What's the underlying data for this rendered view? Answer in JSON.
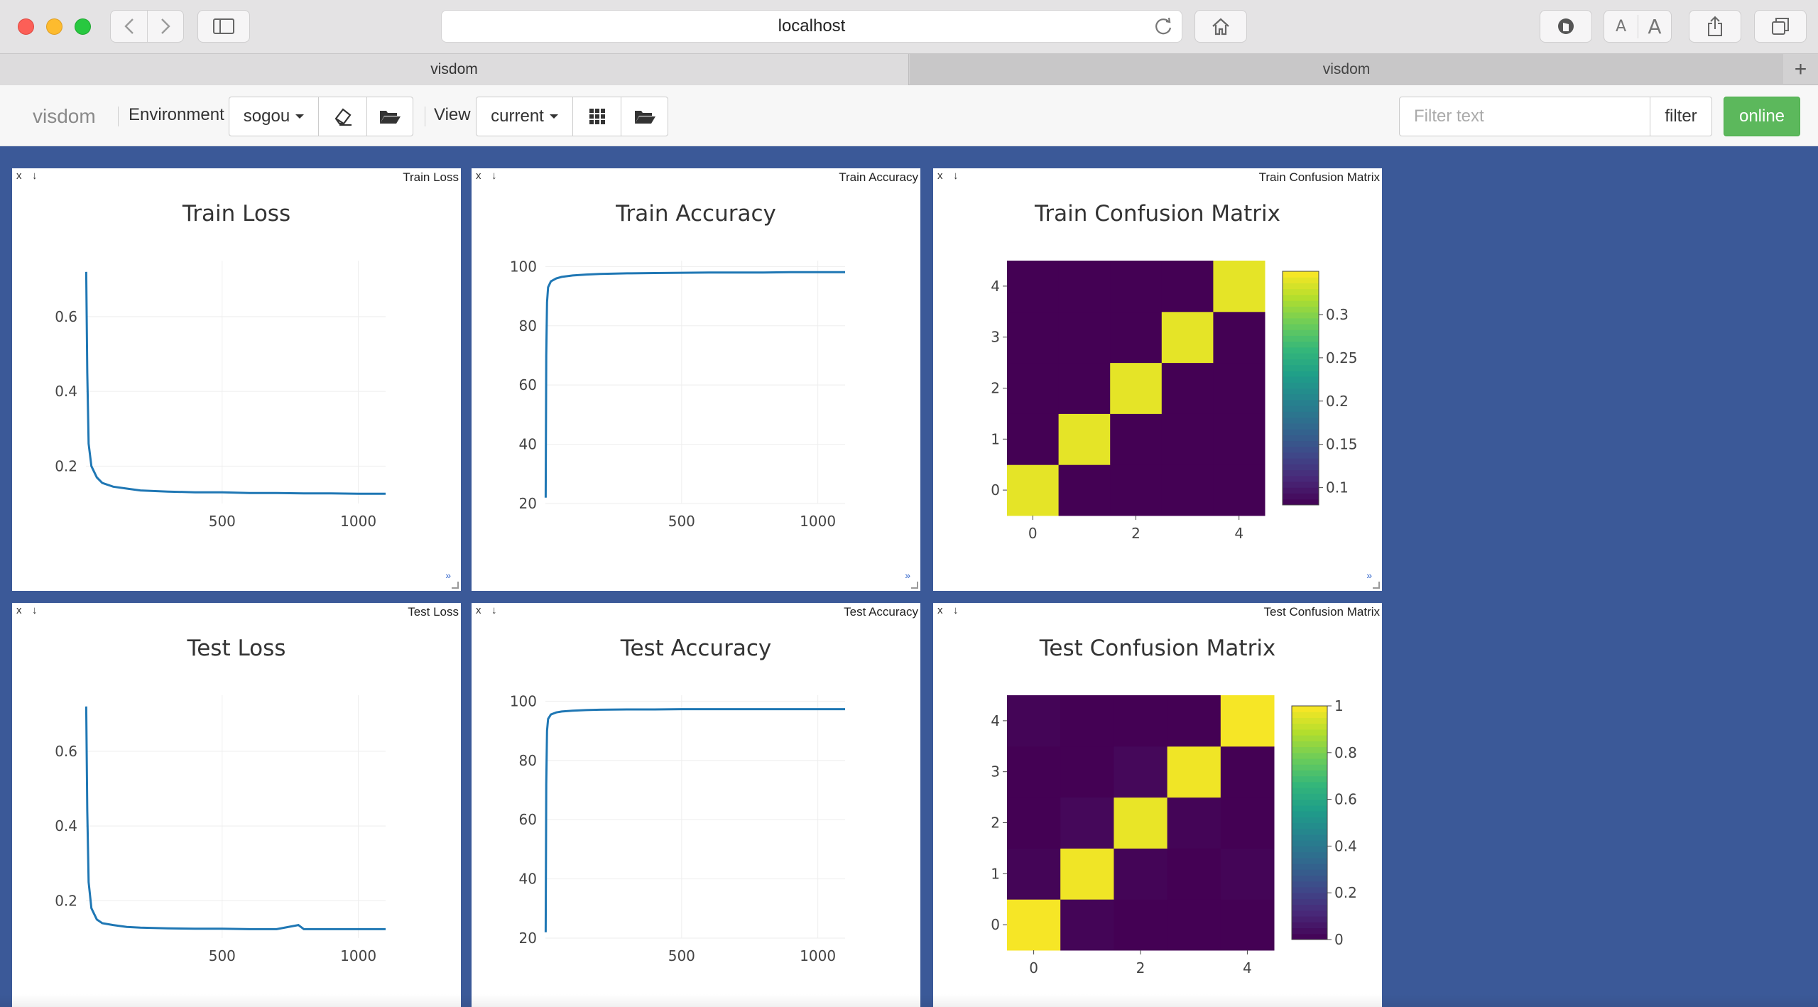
{
  "browser": {
    "url": "localhost",
    "tabs": [
      {
        "label": "visdom"
      },
      {
        "label": "visdom"
      }
    ],
    "new_tab": "+"
  },
  "toolbar": {
    "brand": "visdom",
    "env_label": "Environment",
    "env_value": "sogou",
    "view_label": "View",
    "view_value": "current",
    "filter_placeholder": "Filter text",
    "filter_button": "filter",
    "online_button": "online"
  },
  "panes": [
    {
      "window_title": "Train Loss",
      "plot_title": "Train Loss"
    },
    {
      "window_title": "Train Accuracy",
      "plot_title": "Train Accuracy"
    },
    {
      "window_title": "Train Confusion Matrix",
      "plot_title": "Train Confusion Matrix"
    },
    {
      "window_title": "Test Loss",
      "plot_title": "Test Loss"
    },
    {
      "window_title": "Test Accuracy",
      "plot_title": "Test Accuracy"
    },
    {
      "window_title": "Test Confusion Matrix",
      "plot_title": "Test Confusion Matrix"
    }
  ],
  "pane_controls": {
    "close": "x",
    "download": "↓",
    "expand": "»"
  },
  "colors": {
    "page_bg": "#3b5998",
    "line": "#1f77b4",
    "online": "#5cb85c",
    "viridis_low": "#440154",
    "viridis_high": "#fde725"
  },
  "chart_data": [
    {
      "type": "line",
      "title": "Train Loss",
      "x_ticks": [
        500,
        1000
      ],
      "y_ticks": [
        0.2,
        0.4,
        0.6
      ],
      "xlim": [
        0,
        1100
      ],
      "ylim": [
        0.1,
        0.75
      ],
      "grid": true,
      "series": [
        {
          "x": [
            1,
            5,
            10,
            20,
            40,
            60,
            100,
            150,
            200,
            300,
            400,
            500,
            600,
            700,
            800,
            900,
            1000,
            1100
          ],
          "y": [
            0.72,
            0.45,
            0.26,
            0.2,
            0.17,
            0.155,
            0.145,
            0.14,
            0.135,
            0.132,
            0.13,
            0.13,
            0.128,
            0.128,
            0.127,
            0.127,
            0.126,
            0.126
          ]
        }
      ]
    },
    {
      "type": "line",
      "title": "Train Accuracy",
      "x_ticks": [
        500,
        1000
      ],
      "y_ticks": [
        20,
        40,
        60,
        80,
        100
      ],
      "xlim": [
        0,
        1100
      ],
      "ylim": [
        20,
        102
      ],
      "grid": true,
      "series": [
        {
          "x": [
            1,
            3,
            6,
            10,
            20,
            40,
            60,
            100,
            150,
            200,
            300,
            400,
            500,
            600,
            700,
            800,
            900,
            1000,
            1100
          ],
          "y": [
            22,
            70,
            88,
            93,
            95,
            96,
            96.5,
            97,
            97.3,
            97.5,
            97.7,
            97.8,
            97.9,
            98,
            98,
            98,
            98.1,
            98.1,
            98.1
          ]
        }
      ]
    },
    {
      "type": "heatmap",
      "title": "Train Confusion Matrix",
      "x_ticks": [
        0,
        2,
        4
      ],
      "y_ticks": [
        0,
        1,
        2,
        3,
        4
      ],
      "colorbar_ticks": [
        0.1,
        0.15,
        0.2,
        0.25,
        0.3
      ],
      "zlim": [
        0.08,
        0.35
      ],
      "z": [
        [
          0.34,
          0.08,
          0.08,
          0.08,
          0.08
        ],
        [
          0.08,
          0.34,
          0.08,
          0.08,
          0.08
        ],
        [
          0.08,
          0.08,
          0.34,
          0.08,
          0.08
        ],
        [
          0.08,
          0.08,
          0.08,
          0.34,
          0.08
        ],
        [
          0.08,
          0.08,
          0.08,
          0.08,
          0.34
        ]
      ]
    },
    {
      "type": "line",
      "title": "Test Loss",
      "x_ticks": [
        500,
        1000
      ],
      "y_ticks": [
        0.2,
        0.4,
        0.6
      ],
      "xlim": [
        0,
        1100
      ],
      "ylim": [
        0.1,
        0.75
      ],
      "grid": true,
      "series": [
        {
          "x": [
            1,
            5,
            10,
            20,
            40,
            60,
            100,
            150,
            200,
            300,
            400,
            500,
            600,
            700,
            780,
            800,
            900,
            1000,
            1100
          ],
          "y": [
            0.72,
            0.44,
            0.25,
            0.18,
            0.15,
            0.14,
            0.135,
            0.13,
            0.128,
            0.126,
            0.125,
            0.125,
            0.124,
            0.124,
            0.135,
            0.124,
            0.124,
            0.124,
            0.124
          ]
        }
      ]
    },
    {
      "type": "line",
      "title": "Test Accuracy",
      "x_ticks": [
        500,
        1000
      ],
      "y_ticks": [
        20,
        40,
        60,
        80,
        100
      ],
      "xlim": [
        0,
        1100
      ],
      "ylim": [
        20,
        102
      ],
      "grid": true,
      "series": [
        {
          "x": [
            1,
            3,
            6,
            10,
            20,
            40,
            60,
            100,
            150,
            200,
            300,
            400,
            500,
            600,
            700,
            800,
            900,
            1000,
            1100
          ],
          "y": [
            22,
            72,
            90,
            94,
            95.5,
            96.2,
            96.5,
            96.8,
            97,
            97.1,
            97.2,
            97.2,
            97.3,
            97.3,
            97.3,
            97.3,
            97.3,
            97.3,
            97.3
          ]
        }
      ]
    },
    {
      "type": "heatmap",
      "title": "Test Confusion Matrix",
      "x_ticks": [
        0,
        2,
        4
      ],
      "y_ticks": [
        0,
        1,
        2,
        3,
        4
      ],
      "colorbar_ticks": [
        0,
        0.2,
        0.4,
        0.6,
        0.8,
        1
      ],
      "zlim": [
        0,
        1
      ],
      "z": [
        [
          0.99,
          0.01,
          0.0,
          0.0,
          0.0
        ],
        [
          0.01,
          0.98,
          0.01,
          0.0,
          0.01
        ],
        [
          0.0,
          0.02,
          0.97,
          0.01,
          0.0
        ],
        [
          0.0,
          0.0,
          0.02,
          0.98,
          0.0
        ],
        [
          0.01,
          0.0,
          0.0,
          0.0,
          0.99
        ]
      ]
    }
  ]
}
